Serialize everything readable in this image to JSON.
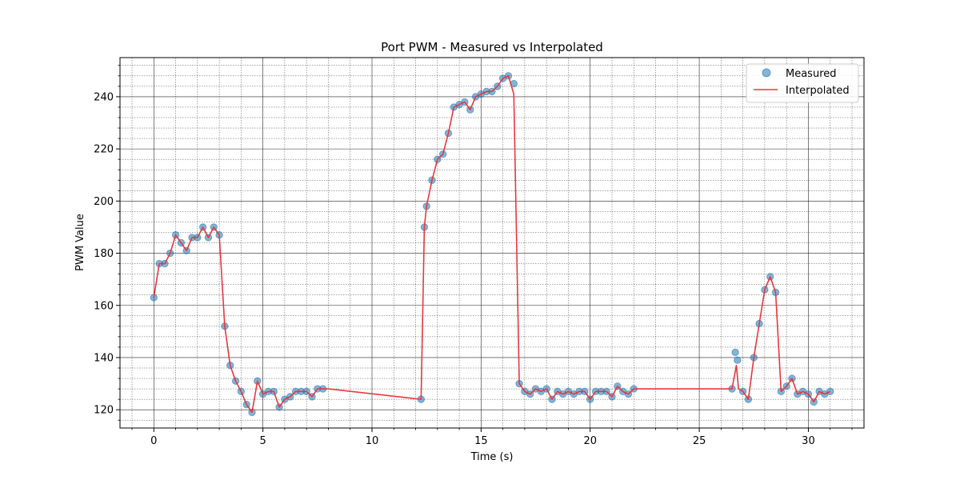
{
  "chart_data": {
    "type": "line",
    "title": "Port PWM - Measured vs Interpolated",
    "xlabel": "Time (s)",
    "ylabel": "PWM Value",
    "xlim": [
      -1.55,
      32.55
    ],
    "ylim": [
      113,
      255
    ],
    "xticks": [
      0,
      5,
      10,
      15,
      20,
      25,
      30
    ],
    "yticks": [
      120,
      140,
      160,
      180,
      200,
      220,
      240
    ],
    "grid": {
      "major": true,
      "minor": true
    },
    "legend_position": "top-right",
    "series": [
      {
        "name": "Measured",
        "type": "scatter",
        "color": "#1f77b4",
        "x": [
          0,
          0.25,
          0.5,
          0.75,
          1.0,
          1.25,
          1.5,
          1.75,
          2.0,
          2.25,
          2.5,
          2.75,
          3.0,
          3.25,
          3.5,
          3.75,
          4.0,
          4.25,
          4.5,
          4.75,
          5.0,
          5.25,
          5.5,
          5.75,
          6.0,
          6.25,
          6.5,
          6.75,
          7.0,
          7.25,
          7.5,
          7.75,
          12.25,
          12.4,
          12.5,
          12.75,
          13.0,
          13.25,
          13.5,
          13.75,
          14.0,
          14.25,
          14.5,
          14.75,
          15.0,
          15.25,
          15.5,
          15.75,
          16.0,
          16.25,
          16.5,
          16.75,
          17.0,
          17.25,
          17.5,
          17.75,
          18.0,
          18.25,
          18.5,
          18.75,
          19.0,
          19.25,
          19.5,
          19.75,
          20.0,
          20.25,
          20.5,
          20.75,
          21.0,
          21.25,
          21.5,
          21.75,
          22.0,
          26.5,
          26.65,
          26.75,
          27.0,
          27.25,
          27.5,
          27.75,
          28.0,
          28.25,
          28.5,
          28.75,
          29.0,
          29.25,
          29.5,
          29.75,
          30.0,
          30.25,
          30.5,
          30.75,
          31.0
        ],
        "y": [
          163,
          176,
          176,
          180,
          187,
          184,
          181,
          186,
          186,
          190,
          186,
          190,
          187,
          152,
          137,
          131,
          127,
          122,
          119,
          131,
          126,
          127,
          127,
          121,
          124,
          125,
          127,
          127,
          127,
          125,
          128,
          128,
          124,
          190,
          198,
          208,
          216,
          218,
          226,
          236,
          237,
          238,
          235,
          240,
          241,
          242,
          242,
          244,
          247,
          248,
          245,
          130,
          127,
          126,
          128,
          127,
          128,
          124,
          127,
          126,
          127,
          126,
          127,
          127,
          124,
          127,
          127,
          127,
          125,
          129,
          127,
          126,
          128,
          128,
          142,
          139,
          127,
          124,
          140,
          153,
          166,
          171,
          165,
          127,
          129,
          132,
          126,
          127,
          126,
          123,
          127,
          126,
          127
        ]
      },
      {
        "name": "Interpolated",
        "type": "line",
        "color": "#e8383d",
        "x": [
          0,
          0.25,
          0.5,
          0.75,
          1.0,
          1.25,
          1.5,
          1.75,
          2.0,
          2.25,
          2.5,
          2.75,
          3.0,
          3.25,
          3.5,
          3.75,
          4.0,
          4.25,
          4.5,
          4.75,
          5.0,
          5.25,
          5.5,
          5.75,
          6.0,
          6.25,
          6.5,
          6.75,
          7.0,
          7.25,
          7.5,
          7.75,
          8.0,
          12.25,
          12.4,
          12.5,
          12.75,
          13.0,
          13.25,
          13.5,
          13.75,
          14.0,
          14.25,
          14.5,
          14.75,
          15.0,
          15.25,
          15.5,
          15.75,
          16.0,
          16.25,
          16.5,
          16.75,
          17.0,
          17.25,
          17.5,
          17.75,
          18.0,
          18.25,
          18.5,
          18.75,
          19.0,
          19.25,
          19.5,
          19.75,
          20.0,
          20.25,
          20.5,
          20.75,
          21.0,
          21.25,
          21.5,
          21.75,
          22.0,
          26.5,
          26.7,
          26.8,
          27.0,
          27.25,
          27.5,
          27.75,
          28.0,
          28.25,
          28.5,
          28.75,
          29.0,
          29.25,
          29.5,
          29.75,
          30.0,
          30.25,
          30.5,
          30.75,
          31.0
        ],
        "y": [
          163,
          176,
          176,
          180,
          187,
          184,
          181,
          186,
          186,
          190,
          186,
          190,
          187,
          152,
          137,
          131,
          127,
          122,
          119,
          131,
          126,
          127,
          127,
          121,
          124,
          125,
          127,
          127,
          127,
          125,
          128,
          128,
          128,
          124,
          190,
          198,
          208,
          216,
          218,
          226,
          236,
          237,
          238,
          235,
          240,
          241,
          242,
          242,
          244,
          247,
          248,
          241,
          130,
          127,
          126,
          128,
          127,
          128,
          124,
          127,
          126,
          127,
          126,
          127,
          127,
          124,
          127,
          127,
          127,
          125,
          129,
          127,
          126,
          128,
          128,
          137,
          128,
          127,
          124,
          140,
          153,
          166,
          171,
          165,
          127,
          129,
          132,
          126,
          127,
          126,
          123,
          127,
          126,
          127
        ]
      }
    ]
  }
}
